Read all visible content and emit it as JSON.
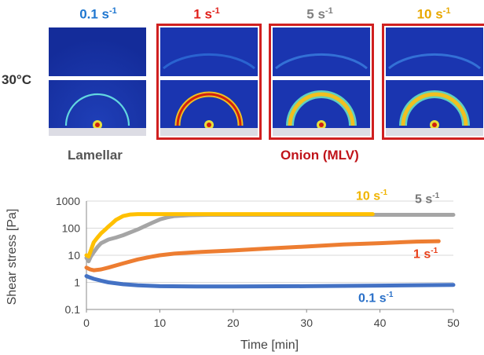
{
  "temperature_label": "30°C",
  "panels": [
    {
      "label": "0.1 s",
      "exp": "-1",
      "color": "#1f77d0"
    },
    {
      "label": "1 s",
      "exp": "-1",
      "color": "#e0201a"
    },
    {
      "label": "5 s",
      "exp": "-1",
      "color": "#808080"
    },
    {
      "label": "10 s",
      "exp": "-1",
      "color": "#e8a800"
    }
  ],
  "captions": {
    "lamellar": "Lamellar",
    "onion": "Onion (MLV)"
  },
  "colors": {
    "lamellar_caption": "#555555",
    "onion_caption": "#c0141a",
    "panel_border": "#d02020"
  },
  "chart_data": {
    "type": "line",
    "xlabel": "Time [min]",
    "ylabel": "Shear stress [Pa]",
    "xlim": [
      0,
      50
    ],
    "ylim": [
      0.1,
      1000
    ],
    "yscale": "log",
    "x_ticks": [
      "0",
      "10",
      "20",
      "30",
      "40",
      "50"
    ],
    "y_ticks": [
      "0.1",
      "1",
      "10",
      "100",
      "1000"
    ],
    "grid": "horizontal",
    "series": [
      {
        "name": "0.1 s",
        "exp": "-1",
        "color": "#4472c4",
        "x": [
          0,
          0.5,
          1,
          2,
          3,
          5,
          7,
          10,
          15,
          20,
          30,
          40,
          50
        ],
        "y": [
          1.7,
          1.5,
          1.35,
          1.15,
          1.0,
          0.85,
          0.78,
          0.72,
          0.7,
          0.7,
          0.72,
          0.76,
          0.8
        ]
      },
      {
        "name": "1 s",
        "exp": "-1",
        "color": "#ed7d31",
        "x": [
          0,
          0.5,
          1,
          2,
          3,
          5,
          7,
          9,
          10,
          12,
          15,
          20,
          25,
          30,
          35,
          40,
          45,
          48
        ],
        "y": [
          3.5,
          3.0,
          2.8,
          3.0,
          3.5,
          5,
          7,
          9,
          10,
          11.5,
          13,
          15,
          18,
          21,
          25,
          28,
          32,
          33
        ]
      },
      {
        "name": "5 s",
        "exp": "-1",
        "color": "#a5a5a5",
        "x": [
          0,
          0.3,
          0.6,
          1,
          1.5,
          2,
          3,
          4,
          5,
          6,
          7,
          8,
          9,
          10,
          11,
          12,
          14,
          17,
          20,
          30,
          40,
          50
        ],
        "y": [
          8,
          6,
          9,
          13,
          20,
          28,
          38,
          45,
          55,
          70,
          90,
          120,
          160,
          210,
          250,
          280,
          300,
          310,
          310,
          310,
          310,
          310
        ]
      },
      {
        "name": "10 s",
        "exp": "-1",
        "color": "#ffc000",
        "x": [
          0,
          0.3,
          0.6,
          1,
          1.5,
          2,
          2.5,
          3,
          3.5,
          4,
          5,
          6,
          7,
          8,
          10,
          15,
          20,
          30,
          39
        ],
        "y": [
          10,
          9,
          15,
          30,
          45,
          65,
          85,
          115,
          150,
          200,
          280,
          320,
          330,
          330,
          330,
          330,
          330,
          330,
          330
        ]
      }
    ]
  }
}
